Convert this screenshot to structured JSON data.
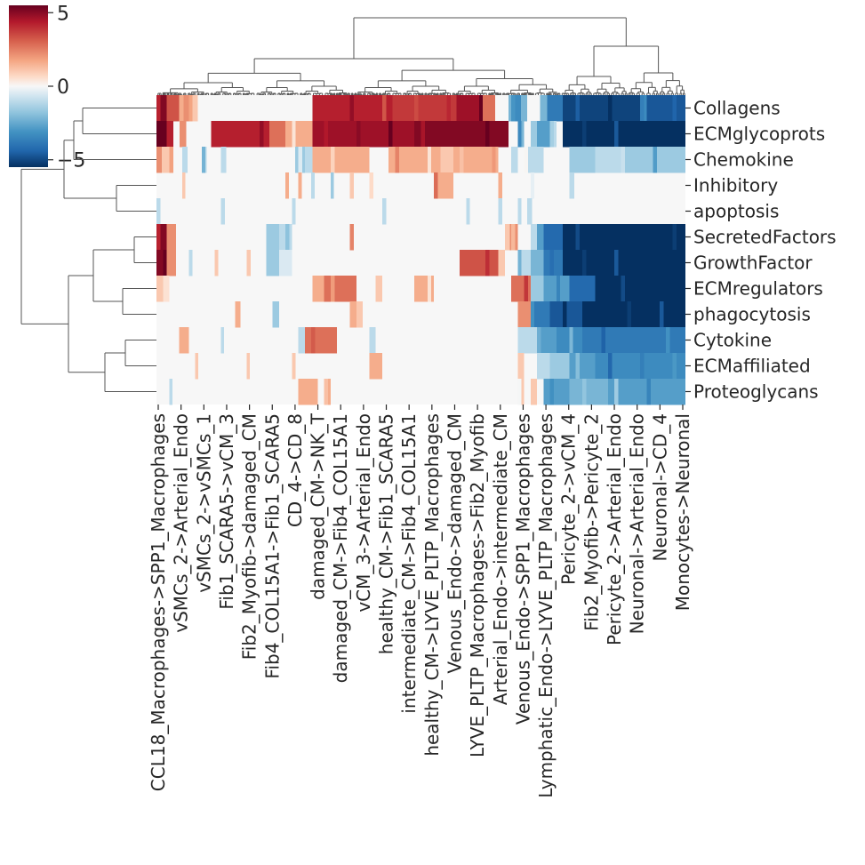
{
  "chart_data": {
    "type": "heatmap",
    "title": "",
    "xlabel": "",
    "ylabel": "",
    "rows": [
      "Collagens",
      "ECMglycoprots",
      "Chemokine",
      "Inhibitory",
      "apoptosis",
      "SecretedFactors",
      "GrowthFactor",
      "ECMregulators",
      "phagocytosis",
      "Cytokine",
      "ECMaffiliated",
      "Proteoglycans"
    ],
    "column_tick_labels": [
      "CCL18_Macrophages->SPP1_Macrophages",
      "vSMCs_2->Arterial_Endo",
      "vSMCs_2->vSMCs_1",
      "Fib1_SCARA5->vCM_3",
      "Fib2_Myofib->damaged_CM",
      "Fib4_COL15A1->Fib1_SCARA5",
      "CD_4->CD_8",
      "damaged_CM->NK_T",
      "damaged_CM->Fib4_COL15A1",
      "vCM_3->Arterial_Endo",
      "healthy_CM->Fib1_SCARA5",
      "intermediate_CM->Fib4_COL15A1",
      "healthy_CM->LYVE_PLTP_Macrophages",
      "Venous_Endo->damaged_CM",
      "LYVE_PLTP_Macrophages->Fib2_Myofib",
      "Arterial_Endo->intermediate_CM",
      "Venous_Endo->SPP1_Macrophages",
      "Lymphatic_Endo->LYVE_PLTP_Macrophages",
      "Pericyte_2->vCM_4",
      "Fib2_Myofib->Pericyte_2",
      "Pericyte_2->Arterial_Endo",
      "Neuronal->Arterial_Endo",
      "Neuronal->CD_4",
      "Monocytes->Neuronal"
    ],
    "colorbar": {
      "range": [
        -5.5,
        5.5
      ],
      "ticks": [
        5,
        0,
        -5
      ],
      "tick_labels": [
        "5",
        "0",
        "−5"
      ],
      "colormap": "RdBu_r"
    },
    "colors": {
      "high": "#67001f",
      "mid": "#f7f7f7",
      "low": "#053061"
    },
    "value_segments": [
      [
        [
          0,
          1.6,
          5
        ],
        [
          1.6,
          3.5,
          3
        ],
        [
          3.5,
          4.2,
          1.5
        ],
        [
          4.2,
          5.5,
          2
        ],
        [
          5.5,
          6.4,
          1
        ],
        [
          6.4,
          24.2,
          0
        ],
        [
          24.2,
          36.6,
          4
        ],
        [
          36.6,
          46.5,
          3.5
        ],
        [
          46.5,
          50.5,
          4.5
        ],
        [
          50.5,
          52.5,
          2.5
        ],
        [
          52.5,
          54.6,
          0
        ],
        [
          54.6,
          55.5,
          -2
        ],
        [
          55.5,
          56.5,
          -3
        ],
        [
          56.5,
          57.5,
          -2
        ],
        [
          57.5,
          59.5,
          0
        ],
        [
          59.5,
          60.5,
          -2
        ],
        [
          60.5,
          63,
          -3.5
        ],
        [
          63,
          75,
          -5
        ],
        [
          75,
          76,
          -3
        ],
        [
          76,
          82,
          -4.5
        ]
      ],
      [
        [
          0,
          1.6,
          5.5
        ],
        [
          1.6,
          2.6,
          4
        ],
        [
          2.6,
          3.6,
          0
        ],
        [
          3.6,
          4.6,
          2
        ],
        [
          4.6,
          8.5,
          0
        ],
        [
          8.5,
          17.5,
          4
        ],
        [
          17.5,
          20,
          2.5
        ],
        [
          20,
          24.2,
          1.5
        ],
        [
          24.2,
          40,
          4.5
        ],
        [
          40,
          54.6,
          5
        ],
        [
          54.6,
          56,
          0
        ],
        [
          56,
          57,
          -2
        ],
        [
          57,
          58,
          0
        ],
        [
          58,
          59,
          -1.5
        ],
        [
          59,
          61,
          -2.5
        ],
        [
          61,
          62,
          -1
        ],
        [
          62,
          63,
          0
        ],
        [
          63,
          82,
          -5.5
        ]
      ],
      [
        [
          0,
          0.8,
          2
        ],
        [
          0.8,
          2.6,
          1
        ],
        [
          2.6,
          4,
          0
        ],
        [
          4,
          4.8,
          -1
        ],
        [
          4.8,
          7,
          0
        ],
        [
          7,
          7.8,
          -1
        ],
        [
          7.8,
          10,
          0
        ],
        [
          10,
          10.8,
          -1
        ],
        [
          10.8,
          21.5,
          0
        ],
        [
          21.5,
          23,
          -1.5
        ],
        [
          23,
          24.2,
          -1
        ],
        [
          24.2,
          33,
          1.5
        ],
        [
          33,
          36,
          0
        ],
        [
          36,
          44,
          1.5
        ],
        [
          44,
          46,
          1
        ],
        [
          46,
          53,
          1.5
        ],
        [
          53,
          55,
          0
        ],
        [
          55,
          56,
          -1
        ],
        [
          56,
          57,
          0
        ],
        [
          57,
          60,
          -1
        ],
        [
          60,
          64,
          0
        ],
        [
          64,
          68,
          -1.5
        ],
        [
          68,
          72,
          -1
        ],
        [
          72,
          82,
          -1.5
        ]
      ],
      [
        [
          0,
          4,
          0
        ],
        [
          4,
          4.5,
          1
        ],
        [
          4.5,
          20,
          0
        ],
        [
          20,
          20.5,
          1.5
        ],
        [
          20.5,
          22,
          0
        ],
        [
          22,
          22.5,
          1.5
        ],
        [
          22.5,
          24,
          0
        ],
        [
          24,
          24.5,
          -1
        ],
        [
          24.5,
          27,
          0
        ],
        [
          27,
          27.5,
          -1.5
        ],
        [
          27.5,
          30,
          0
        ],
        [
          30,
          30.6,
          1
        ],
        [
          30.6,
          33,
          0
        ],
        [
          33,
          33.6,
          1
        ],
        [
          33.6,
          43,
          0
        ],
        [
          43,
          46,
          1.5
        ],
        [
          46,
          53,
          0
        ],
        [
          53,
          53.6,
          1.5
        ],
        [
          53.6,
          58,
          0
        ],
        [
          58,
          58.5,
          -1
        ],
        [
          58.5,
          64,
          0
        ],
        [
          64,
          64.8,
          -1
        ],
        [
          64.8,
          82,
          0
        ]
      ],
      [
        [
          0,
          0.6,
          -1
        ],
        [
          0.6,
          10,
          0
        ],
        [
          10,
          10.6,
          -1
        ],
        [
          10.6,
          21,
          0
        ],
        [
          21,
          21.6,
          -1
        ],
        [
          21.6,
          35,
          0
        ],
        [
          35,
          35.6,
          -1
        ],
        [
          35.6,
          48,
          0
        ],
        [
          48,
          48.6,
          -1
        ],
        [
          48.6,
          53,
          0
        ],
        [
          53,
          53.6,
          -1
        ],
        [
          53.6,
          56,
          0
        ],
        [
          56,
          56.6,
          -1
        ],
        [
          56.6,
          57.5,
          0
        ],
        [
          57.5,
          58.2,
          -1
        ],
        [
          58.2,
          82,
          0
        ]
      ],
      [
        [
          0,
          1.6,
          5
        ],
        [
          1.6,
          3,
          2
        ],
        [
          3,
          17,
          0
        ],
        [
          17,
          19,
          -1.5
        ],
        [
          19,
          21,
          -1
        ],
        [
          21,
          30,
          0
        ],
        [
          30,
          30.6,
          1.5
        ],
        [
          30.6,
          54,
          0
        ],
        [
          54,
          54.8,
          1
        ],
        [
          54.8,
          56,
          2
        ],
        [
          56,
          58,
          0
        ],
        [
          58,
          59,
          -1
        ],
        [
          59,
          60,
          -2.5
        ],
        [
          60,
          63,
          -4
        ],
        [
          63,
          82,
          -5.5
        ]
      ],
      [
        [
          0,
          1.6,
          5
        ],
        [
          1.6,
          3,
          2
        ],
        [
          3,
          5,
          0
        ],
        [
          5,
          5.6,
          -1
        ],
        [
          5.6,
          9,
          0
        ],
        [
          9,
          9.6,
          1
        ],
        [
          9.6,
          14,
          0
        ],
        [
          14,
          14.6,
          1
        ],
        [
          14.6,
          17,
          0
        ],
        [
          17,
          19,
          -1.5
        ],
        [
          19,
          21,
          -0.5
        ],
        [
          21,
          47,
          0
        ],
        [
          47,
          53,
          3
        ],
        [
          53,
          54,
          1
        ],
        [
          54,
          56,
          0
        ],
        [
          56,
          58,
          -1
        ],
        [
          58,
          60,
          -2
        ],
        [
          60,
          63,
          -3.5
        ],
        [
          63,
          82,
          -5.5
        ]
      ],
      [
        [
          0,
          1,
          1
        ],
        [
          1,
          2,
          0.5
        ],
        [
          2,
          24.2,
          0
        ],
        [
          24.2,
          26,
          1.5
        ],
        [
          26,
          31,
          2.5
        ],
        [
          31,
          34,
          0
        ],
        [
          34,
          35,
          1
        ],
        [
          35,
          40,
          0
        ],
        [
          40,
          43,
          1.5
        ],
        [
          43,
          55,
          0
        ],
        [
          55,
          58,
          2.5
        ],
        [
          58,
          60,
          -1.5
        ],
        [
          60,
          64,
          -2.5
        ],
        [
          64,
          68,
          -4
        ],
        [
          68,
          82,
          -5.5
        ]
      ],
      [
        [
          0,
          12.2,
          0
        ],
        [
          12.2,
          13,
          1.5
        ],
        [
          13,
          18,
          0
        ],
        [
          18,
          19,
          -1.5
        ],
        [
          19,
          30,
          0
        ],
        [
          30,
          31,
          1.5
        ],
        [
          31,
          32,
          1
        ],
        [
          32,
          56,
          0
        ],
        [
          56,
          58,
          2
        ],
        [
          58,
          61,
          -3.5
        ],
        [
          61,
          66,
          -4.5
        ],
        [
          66,
          82,
          -5.5
        ]
      ],
      [
        [
          0,
          3.5,
          0
        ],
        [
          3.5,
          5,
          1.5
        ],
        [
          5,
          10,
          0
        ],
        [
          10,
          10.5,
          -1
        ],
        [
          10.5,
          22,
          0
        ],
        [
          22,
          23,
          -1
        ],
        [
          23,
          28,
          2.5
        ],
        [
          28,
          33,
          0
        ],
        [
          33,
          34,
          -1
        ],
        [
          34,
          56,
          0
        ],
        [
          56,
          59,
          -1
        ],
        [
          59,
          62,
          -2.5
        ],
        [
          62,
          66,
          -3
        ],
        [
          66,
          82,
          -3.5
        ]
      ],
      [
        [
          0,
          6,
          0
        ],
        [
          6,
          6.5,
          1
        ],
        [
          6.5,
          14,
          0
        ],
        [
          14,
          14.5,
          1
        ],
        [
          14.5,
          21,
          0
        ],
        [
          21,
          21.6,
          1
        ],
        [
          21.6,
          33,
          0
        ],
        [
          33,
          35,
          1.5
        ],
        [
          35,
          56,
          0
        ],
        [
          56,
          57,
          1
        ],
        [
          57,
          59,
          0
        ],
        [
          59,
          61,
          -1
        ],
        [
          61,
          64,
          -1.5
        ],
        [
          64,
          68,
          -2.5
        ],
        [
          68,
          82,
          -3
        ]
      ],
      [
        [
          0,
          2,
          0
        ],
        [
          2,
          2.5,
          -1
        ],
        [
          2.5,
          22,
          0
        ],
        [
          22,
          25,
          1.5
        ],
        [
          25,
          26,
          0
        ],
        [
          26,
          27,
          1.5
        ],
        [
          27,
          56,
          0
        ],
        [
          56,
          57,
          1
        ],
        [
          57,
          58,
          0
        ],
        [
          58,
          59,
          1
        ],
        [
          59,
          60,
          0
        ],
        [
          60,
          64,
          -2.5
        ],
        [
          64,
          70,
          -2
        ],
        [
          70,
          82,
          -2.5
        ]
      ]
    ]
  }
}
